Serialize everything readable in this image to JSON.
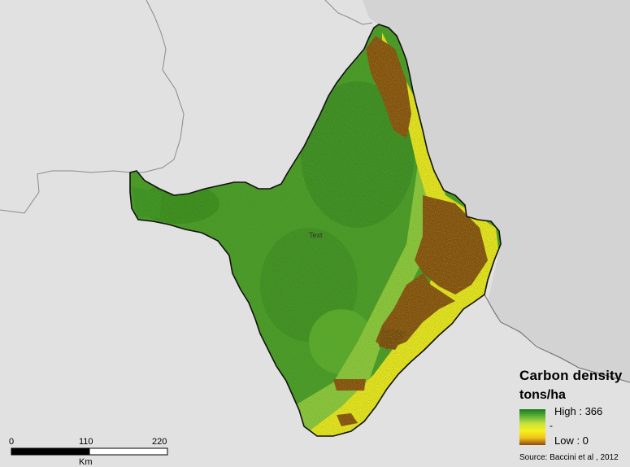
{
  "legend": {
    "title": "Carbon density",
    "unit": "tons/ha",
    "high_label": "High : 366",
    "mid_label": "-",
    "low_label": "Low : 0",
    "high_value": 366,
    "low_value": 0,
    "ramp_colors": [
      "#1a7a1a",
      "#5fb43a",
      "#c8e03a",
      "#f4f21e",
      "#f2c21a",
      "#8c4a10"
    ]
  },
  "scale_bar": {
    "ticks": [
      "0",
      "110",
      "220"
    ],
    "unit": "Km"
  },
  "source": "Source: Baccini et al , 2012",
  "map_label": "Text",
  "colors": {
    "background": "#e1e1e1",
    "ocean": "#d0d0d0",
    "forest_dark": "#2c7a1c",
    "forest": "#4c9a28",
    "forest_light": "#7cbc2c",
    "yellow": "#e8e41c",
    "brown": "#8c4a10",
    "border": "#111111"
  }
}
